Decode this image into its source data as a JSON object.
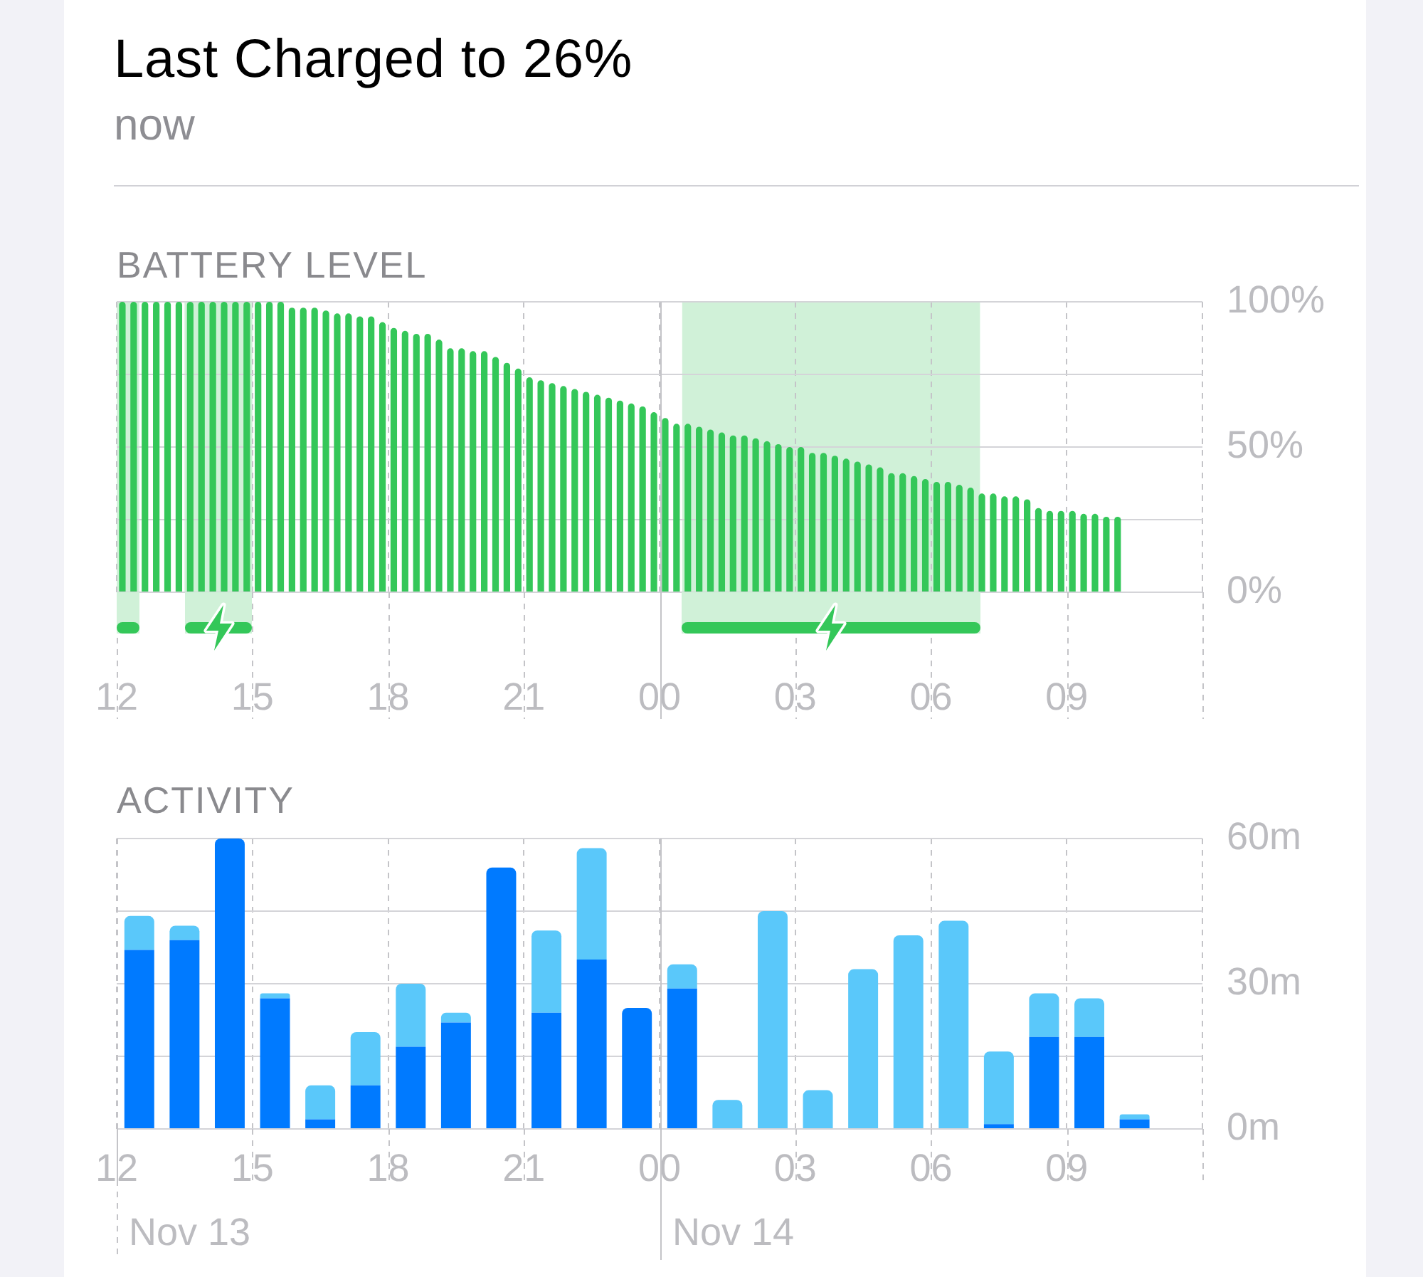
{
  "chart_data": [
    {
      "type": "other",
      "title": "Last Charged to 26%",
      "subtitle": "now"
    },
    {
      "type": "bar",
      "title": "BATTERY LEVEL",
      "color": "#34c759",
      "x": [
        "--11-13T12:07:30",
        "--11-13T12:22:30",
        "--11-13T12:37:30",
        "--11-13T12:52:30",
        "--11-13T13:07:30",
        "--11-13T13:22:30",
        "--11-13T13:37:30",
        "--11-13T13:52:30",
        "--11-13T14:07:30",
        "--11-13T14:22:30",
        "--11-13T14:37:30",
        "--11-13T14:52:30",
        "--11-13T15:07:30",
        "--11-13T15:22:30",
        "--11-13T15:37:30",
        "--11-13T15:52:30",
        "--11-13T16:07:30",
        "--11-13T16:22:30",
        "--11-13T16:37:30",
        "--11-13T16:52:30",
        "--11-13T17:07:30",
        "--11-13T17:22:30",
        "--11-13T17:37:30",
        "--11-13T17:52:30",
        "--11-13T18:07:30",
        "--11-13T18:22:30",
        "--11-13T18:37:30",
        "--11-13T18:52:30",
        "--11-13T19:07:30",
        "--11-13T19:22:30",
        "--11-13T19:37:30",
        "--11-13T19:52:30",
        "--11-13T20:07:30",
        "--11-13T20:22:30",
        "--11-13T20:37:30",
        "--11-13T20:52:30",
        "--11-13T21:07:30",
        "--11-13T21:22:30",
        "--11-13T21:37:30",
        "--11-13T21:52:30",
        "--11-13T22:07:30",
        "--11-13T22:22:30",
        "--11-13T22:37:30",
        "--11-13T22:52:30",
        "--11-13T23:07:30",
        "--11-13T23:22:30",
        "--11-13T23:37:30",
        "--11-13T23:52:30",
        "--11-14T00:07:30",
        "--11-14T00:22:30",
        "--11-14T00:37:30",
        "--11-14T00:52:30",
        "--11-14T01:07:30",
        "--11-14T01:22:30",
        "--11-14T01:37:30",
        "--11-14T01:52:30",
        "--11-14T02:07:30",
        "--11-14T02:22:30",
        "--11-14T02:37:30",
        "--11-14T02:52:30",
        "--11-14T03:07:30",
        "--11-14T03:22:30",
        "--11-14T03:37:30",
        "--11-14T03:52:30",
        "--11-14T04:07:30",
        "--11-14T04:22:30",
        "--11-14T04:37:30",
        "--11-14T04:52:30",
        "--11-14T05:07:30",
        "--11-14T05:22:30",
        "--11-14T05:37:30",
        "--11-14T05:52:30",
        "--11-14T06:07:30",
        "--11-14T06:22:30",
        "--11-14T06:37:30",
        "--11-14T06:52:30",
        "--11-14T07:07:30",
        "--11-14T07:22:30",
        "--11-14T07:37:30",
        "--11-14T07:52:30",
        "--11-14T08:07:30",
        "--11-14T08:22:30",
        "--11-14T08:37:30",
        "--11-14T08:52:30",
        "--11-14T09:07:30",
        "--11-14T09:22:30",
        "--11-14T09:37:30",
        "--11-14T09:52:30",
        "--11-14T10:07:30"
      ],
      "values": [
        100,
        100,
        100,
        100,
        100,
        100,
        100,
        100,
        100,
        100,
        100,
        100,
        100,
        100,
        100,
        98,
        98,
        98,
        97,
        96,
        96,
        95,
        95,
        93,
        91,
        90,
        89,
        89,
        87,
        84,
        84,
        83,
        83,
        81,
        79,
        77,
        74,
        73,
        72,
        71,
        70,
        69,
        68,
        67,
        66,
        65,
        64,
        62,
        60,
        58,
        58,
        57,
        56,
        55,
        54,
        54,
        53,
        52,
        51,
        50,
        50,
        48,
        48,
        47,
        46,
        45,
        44,
        43,
        41,
        41,
        40,
        39,
        38,
        38,
        37,
        36,
        34,
        34,
        33,
        33,
        32,
        29,
        28,
        28,
        28,
        27,
        27,
        26,
        26
      ],
      "xlim": [
        "--11-13T12:00",
        "--11-14T12:00"
      ],
      "xticks": [
        {
          "value": "--11-13T12:00",
          "label": "12"
        },
        {
          "value": "--11-13T15:00",
          "label": "15"
        },
        {
          "value": "--11-13T18:00",
          "label": "18"
        },
        {
          "value": "--11-13T21:00",
          "label": "21"
        },
        {
          "value": "--11-14T00:00",
          "label": "00"
        },
        {
          "value": "--11-14T03:00",
          "label": "03"
        },
        {
          "value": "--11-14T06:00",
          "label": "06"
        },
        {
          "value": "--11-14T09:00",
          "label": "09"
        },
        {
          "value": "--11-14T12:00",
          "label": null
        }
      ],
      "ylim": [
        0,
        100
      ],
      "yticks": [
        {
          "value": 0,
          "label": "0%"
        },
        {
          "value": 25,
          "label": null
        },
        {
          "value": 50,
          "label": "50%"
        },
        {
          "value": 75,
          "label": null
        },
        {
          "value": 100,
          "label": "100%"
        }
      ],
      "grid": true,
      "bands": [
        {
          "axis": "x",
          "from": "--11-13T12:00",
          "to": "--11-13T12:30",
          "color": "#d0f1d8"
        },
        {
          "axis": "x",
          "from": "--11-13T13:30",
          "to": "--11-13T15:00",
          "color": "#d0f1d8"
        },
        {
          "axis": "x",
          "from": "--11-14T00:30",
          "to": "--11-14T07:05",
          "color": "#d0f1d8"
        }
      ],
      "ref_lines": [
        {
          "axis": "x",
          "value": "--11-14T00:00",
          "line_style": "solid"
        }
      ]
    },
    {
      "type": "bar",
      "title": "ACTIVITY",
      "stacked": true,
      "x": [
        "--11-13T12:30",
        "--11-13T13:30",
        "--11-13T14:30",
        "--11-13T15:30",
        "--11-13T16:30",
        "--11-13T17:30",
        "--11-13T18:30",
        "--11-13T19:30",
        "--11-13T20:30",
        "--11-13T21:30",
        "--11-13T22:30",
        "--11-13T23:30",
        "--11-14T00:30",
        "--11-14T01:30",
        "--11-14T02:30",
        "--11-14T03:30",
        "--11-14T04:30",
        "--11-14T05:30",
        "--11-14T06:30",
        "--11-14T07:30",
        "--11-14T08:30",
        "--11-14T09:30",
        "--11-14T10:30"
      ],
      "series": [
        {
          "color": "#007aff",
          "values": [
            37,
            39,
            60,
            27,
            2,
            9,
            17,
            22,
            54,
            24,
            35,
            25,
            29,
            0,
            0,
            0,
            0,
            0,
            0,
            1,
            19,
            19,
            2
          ]
        },
        {
          "color": "#5ac8fa",
          "values": [
            7,
            3,
            0,
            1,
            7,
            11,
            13,
            2,
            0,
            17,
            23,
            0,
            5,
            6,
            45,
            8,
            33,
            40,
            43,
            15,
            9,
            8,
            1
          ]
        }
      ],
      "xlim": [
        "--11-13T12:00",
        "--11-14T12:00"
      ],
      "xticks": [
        {
          "value": "--11-13T12:00",
          "label": "12"
        },
        {
          "value": "--11-13T15:00",
          "label": "15"
        },
        {
          "value": "--11-13T18:00",
          "label": "18"
        },
        {
          "value": "--11-13T21:00",
          "label": "21"
        },
        {
          "value": "--11-14T00:00",
          "label": "00"
        },
        {
          "value": "--11-14T03:00",
          "label": "03"
        },
        {
          "value": "--11-14T06:00",
          "label": "06"
        },
        {
          "value": "--11-14T09:00",
          "label": "09"
        },
        {
          "value": "--11-14T12:00",
          "label": null
        }
      ],
      "ylim": [
        0,
        60
      ],
      "yticks": [
        {
          "value": 0,
          "label": "0m"
        },
        {
          "value": 15,
          "label": null
        },
        {
          "value": 30,
          "label": "30m"
        },
        {
          "value": 45,
          "label": null
        },
        {
          "value": 60,
          "label": "60m"
        }
      ],
      "grid": true,
      "ref_lines": [
        {
          "axis": "x",
          "value": "--11-13T12:00",
          "label": "Nov 13",
          "line_style": "dashed"
        },
        {
          "axis": "x",
          "value": "--11-14T00:00",
          "label": "Nov 14",
          "line_style": "solid"
        }
      ]
    }
  ]
}
